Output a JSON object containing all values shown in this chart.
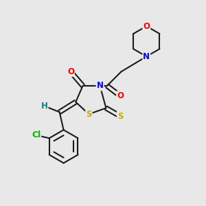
{
  "bg_color": "#e8e8e8",
  "bond_color": "#1a1a1a",
  "atom_colors": {
    "N": "#0000ff",
    "O": "#ff0000",
    "S": "#ccaa00",
    "Cl": "#00bb00",
    "H": "#008888",
    "C": "#1a1a1a"
  },
  "font_size_atom": 8.5,
  "fig_size": [
    3.0,
    3.0
  ],
  "dpi": 100
}
